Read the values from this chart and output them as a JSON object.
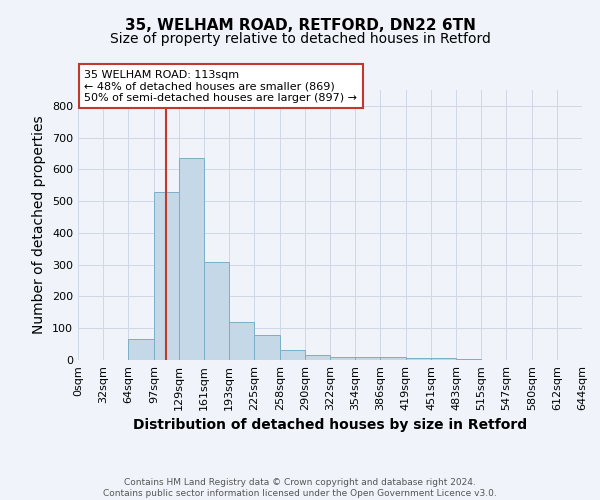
{
  "title1": "35, WELHAM ROAD, RETFORD, DN22 6TN",
  "title2": "Size of property relative to detached houses in Retford",
  "xlabel": "Distribution of detached houses by size in Retford",
  "ylabel": "Number of detached properties",
  "footer": "Contains HM Land Registry data © Crown copyright and database right 2024.\nContains public sector information licensed under the Open Government Licence v3.0.",
  "bins": [
    "0sqm",
    "32sqm",
    "64sqm",
    "97sqm",
    "129sqm",
    "161sqm",
    "193sqm",
    "225sqm",
    "258sqm",
    "290sqm",
    "322sqm",
    "354sqm",
    "386sqm",
    "419sqm",
    "451sqm",
    "483sqm",
    "515sqm",
    "547sqm",
    "580sqm",
    "612sqm",
    "644sqm"
  ],
  "bin_edges": [
    0,
    32,
    64,
    97,
    129,
    161,
    193,
    225,
    258,
    290,
    322,
    354,
    386,
    419,
    451,
    483,
    515,
    547,
    580,
    612,
    644
  ],
  "bar_heights": [
    0,
    0,
    65,
    530,
    635,
    310,
    120,
    78,
    30,
    15,
    10,
    8,
    8,
    5,
    5,
    2,
    1,
    0,
    0,
    0
  ],
  "bar_color": "#c5d8e8",
  "bar_edge_color": "#7aaec8",
  "property_size": 113,
  "vline_color": "#c0392b",
  "annotation_text": "35 WELHAM ROAD: 113sqm\n← 48% of detached houses are smaller (869)\n50% of semi-detached houses are larger (897) →",
  "annotation_box_color": "white",
  "annotation_box_edge": "#c0392b",
  "ylim": [
    0,
    850
  ],
  "yticks": [
    0,
    100,
    200,
    300,
    400,
    500,
    600,
    700,
    800
  ],
  "grid_color": "#d0d8e8",
  "bg_color": "#f0f4fa",
  "title_fontsize": 11,
  "subtitle_fontsize": 10,
  "axis_label_fontsize": 10,
  "tick_fontsize": 8,
  "footer_fontsize": 6.5
}
